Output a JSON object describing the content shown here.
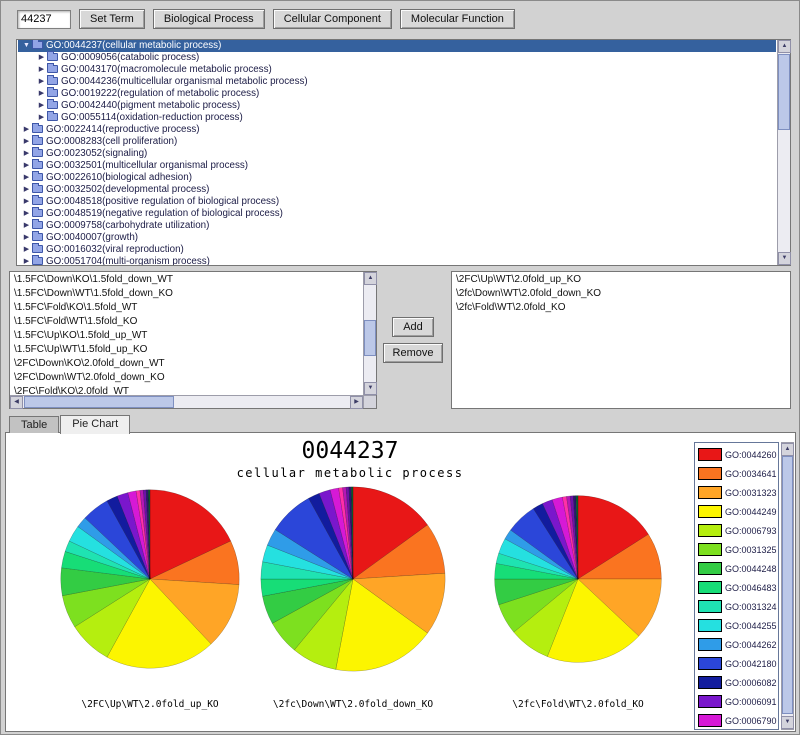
{
  "toolbar": {
    "term_value": "44237",
    "buttons": [
      "Set Term",
      "Biological Process",
      "Cellular Component",
      "Molecular Function"
    ]
  },
  "tree": {
    "items": [
      {
        "label": "GO:0044237(cellular metabolic process)",
        "level": 0,
        "expanded": true,
        "arrow": true,
        "selected": true
      },
      {
        "label": "GO:0009056(catabolic process)",
        "level": 1,
        "arrow": true
      },
      {
        "label": "GO:0043170(macromolecule metabolic process)",
        "level": 1,
        "arrow": true
      },
      {
        "label": "GO:0044236(multicellular organismal metabolic process)",
        "level": 1,
        "arrow": true
      },
      {
        "label": "GO:0019222(regulation of metabolic process)",
        "level": 1,
        "arrow": true
      },
      {
        "label": "GO:0042440(pigment metabolic process)",
        "level": 1,
        "arrow": true
      },
      {
        "label": "GO:0055114(oxidation-reduction process)",
        "level": 1,
        "arrow": true
      },
      {
        "label": "GO:0022414(reproductive process)",
        "level": 0,
        "arrow": true
      },
      {
        "label": "GO:0008283(cell proliferation)",
        "level": 0,
        "arrow": true
      },
      {
        "label": "GO:0023052(signaling)",
        "level": 0,
        "arrow": true
      },
      {
        "label": "GO:0032501(multicellular organismal process)",
        "level": 0,
        "arrow": true
      },
      {
        "label": "GO:0022610(biological adhesion)",
        "level": 0,
        "arrow": true
      },
      {
        "label": "GO:0032502(developmental process)",
        "level": 0,
        "arrow": true
      },
      {
        "label": "GO:0048518(positive regulation of biological process)",
        "level": 0,
        "arrow": true
      },
      {
        "label": "GO:0048519(negative regulation of biological process)",
        "level": 0,
        "arrow": true
      },
      {
        "label": "GO:0009758(carbohydrate utilization)",
        "level": 0,
        "arrow": true
      },
      {
        "label": "GO:0040007(growth)",
        "level": 0,
        "arrow": true
      },
      {
        "label": "GO:0016032(viral reproduction)",
        "level": 0,
        "arrow": true
      },
      {
        "label": "GO:0051704(multi-organism process)",
        "level": 0,
        "arrow": true
      }
    ]
  },
  "lists": {
    "available": [
      "\\1.5FC\\Down\\KO\\1.5fold_down_WT",
      "\\1.5FC\\Down\\WT\\1.5fold_down_KO",
      "\\1.5FC\\Fold\\KO\\1.5fold_WT",
      "\\1.5FC\\Fold\\WT\\1.5fold_KO",
      "\\1.5FC\\Up\\KO\\1.5fold_up_WT",
      "\\1.5FC\\Up\\WT\\1.5fold_up_KO",
      "\\2FC\\Down\\KO\\2.0fold_down_WT",
      "\\2FC\\Down\\WT\\2.0fold_down_KO",
      "\\2FC\\Fold\\KO\\2.0fold_WT"
    ],
    "selected": [
      "\\2FC\\Up\\WT\\2.0fold_up_KO",
      "\\2fc\\Down\\WT\\2.0fold_down_KO",
      "\\2fc\\Fold\\WT\\2.0fold_KO"
    ],
    "add_label": "Add",
    "remove_label": "Remove"
  },
  "tabs": [
    {
      "label": "Table",
      "active": false
    },
    {
      "label": "Pie Chart",
      "active": true
    }
  ],
  "chart_data": {
    "type": "pie",
    "title": "0044237",
    "subtitle": "cellular metabolic process",
    "legend": [
      {
        "label": "GO:0044260",
        "color": "#e81717"
      },
      {
        "label": "GO:0034641",
        "color": "#fa7420"
      },
      {
        "label": "GO:0031323",
        "color": "#ffa526"
      },
      {
        "label": "GO:0044249",
        "color": "#fcf500"
      },
      {
        "label": "GO:0006793",
        "color": "#b5ee0f"
      },
      {
        "label": "GO:0031325",
        "color": "#7de01f"
      },
      {
        "label": "GO:0044248",
        "color": "#33cc44"
      },
      {
        "label": "GO:0046483",
        "color": "#17dd77"
      },
      {
        "label": "GO:0031324",
        "color": "#1fe3b2"
      },
      {
        "label": "GO:0044255",
        "color": "#25e0e0"
      },
      {
        "label": "GO:0044262",
        "color": "#2f9ce8"
      },
      {
        "label": "GO:0042180",
        "color": "#2b46d9"
      },
      {
        "label": "GO:0006082",
        "color": "#121c9e"
      },
      {
        "label": "GO:0006091",
        "color": "#7a17cc"
      },
      {
        "label": "GO:0006790",
        "color": "#d619d6"
      }
    ],
    "extra_colors": [
      "#ff2fa8",
      "#b517b5",
      "#6d12a8",
      "#2a1670",
      "#0b5e2a"
    ],
    "pies": [
      {
        "label": "\\2FC\\Up\\WT\\2.0fold_up_KO",
        "values": [
          18,
          8,
          12,
          20,
          8,
          6,
          5,
          3,
          2,
          3,
          2,
          5,
          2,
          2,
          1.5,
          0.7,
          0.6,
          0.5,
          0.4,
          0.3
        ]
      },
      {
        "label": "\\2fc\\Down\\WT\\2.0fold_down_KO",
        "values": [
          15,
          9,
          11,
          18,
          8,
          6,
          5,
          3,
          3,
          3,
          3,
          8,
          2,
          2,
          1.5,
          0.7,
          0.6,
          0.5,
          0.4,
          0.3
        ]
      },
      {
        "label": "\\2fc\\Fold\\WT\\2.0fold_KO",
        "values": [
          16,
          9,
          12,
          19,
          8,
          6,
          5,
          3,
          2,
          3,
          2,
          6,
          2,
          2,
          2,
          0.8,
          0.7,
          0.6,
          0.5,
          0.4
        ]
      }
    ]
  }
}
